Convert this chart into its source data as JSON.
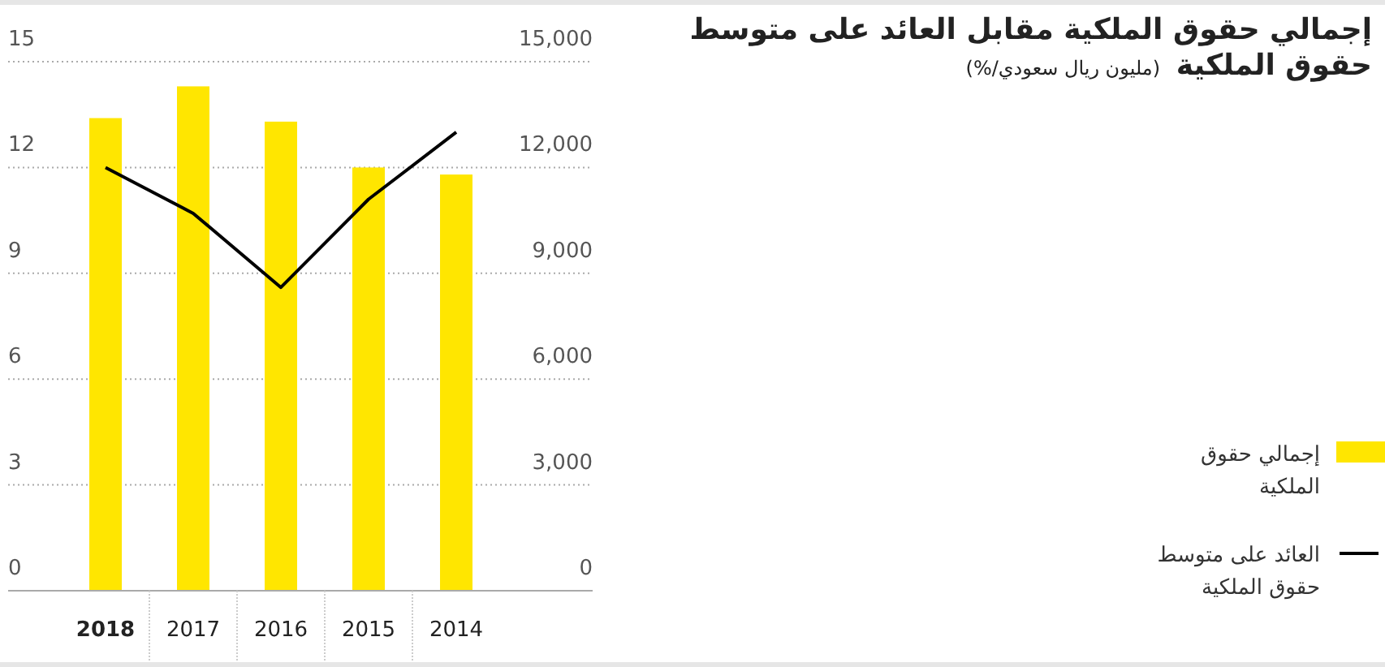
{
  "chart_data": {
    "type": "bar",
    "title": "إجمالي حقوق الملكية مقابل العائد على متوسط حقوق الملكية",
    "subtitle": "(مليون ريال سعودي/%)",
    "categories": [
      "2018",
      "2017",
      "2016",
      "2015",
      "2014"
    ],
    "series": [
      {
        "name": "إجمالي حقوق الملكية",
        "axis": "y2",
        "color": "#ffe600",
        "values": [
          13400,
          14300,
          13300,
          12000,
          11800
        ]
      },
      {
        "name": "العائد على متوسط حقوق الملكية",
        "type": "line",
        "axis": "y",
        "color": "#000000",
        "values": [
          12.0,
          10.7,
          8.6,
          11.1,
          13.0
        ]
      }
    ],
    "ylim": [
      0,
      15
    ],
    "yticks": [
      0,
      3,
      6,
      9,
      12,
      15
    ],
    "y2lim": [
      0,
      15000
    ],
    "y2ticks": [
      {
        "value": 0,
        "label": "0"
      },
      {
        "value": 3000,
        "label": "3,000"
      },
      {
        "value": 6000,
        "label": "6,000"
      },
      {
        "value": 9000,
        "label": "9,000"
      },
      {
        "value": 12000,
        "label": "12,000"
      },
      {
        "value": 15000,
        "label": "15,000"
      }
    ],
    "grid": "y",
    "legend": "right",
    "marker": "none",
    "line_style": "solid"
  }
}
